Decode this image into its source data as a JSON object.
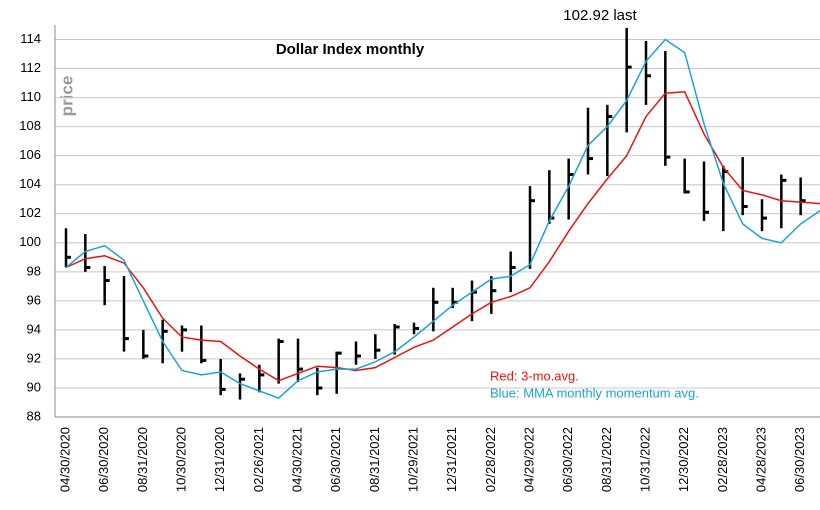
{
  "chart_data": {
    "type": "ohlc",
    "title": "Dollar Index monthly",
    "y_label": "price",
    "annotations": [
      "102.92 last"
    ],
    "categories": [
      "04/30/2020",
      null,
      "06/30/2020",
      null,
      "08/31/2020",
      null,
      "10/30/2020",
      null,
      "12/31/2020",
      null,
      "02/26/2021",
      null,
      "04/30/2021",
      null,
      "06/30/2021",
      null,
      "08/31/2021",
      null,
      "10/29/2021",
      null,
      "12/31/2021",
      null,
      "02/28/2022",
      null,
      "04/29/2022",
      null,
      "06/30/2022",
      null,
      "08/31/2022",
      null,
      "10/31/2022",
      null,
      "12/30/2022",
      null,
      "02/28/2023",
      null,
      "04/28/2023",
      null,
      "06/30/2023",
      null
    ],
    "bar_color": "#000000",
    "high": [
      101,
      100.6,
      98.4,
      97.7,
      94.0,
      94.7,
      94.3,
      94.3,
      92.0,
      91.0,
      91.6,
      93.4,
      93.4,
      91.4,
      92.5,
      93.2,
      93.7,
      94.4,
      94.5,
      96.9,
      96.9,
      97.4,
      97.7,
      99.4,
      103.9,
      105.0,
      105.8,
      109.3,
      109.5,
      114.8,
      113.9,
      113.2,
      105.8,
      105.6,
      105.3,
      105.9,
      103.0,
      104.7,
      104.5,
      null
    ],
    "low": [
      98.3,
      98.0,
      95.7,
      92.5,
      92.0,
      91.7,
      92.5,
      91.7,
      89.5,
      89.2,
      89.7,
      90.3,
      90.4,
      89.5,
      89.6,
      91.6,
      92.0,
      92.3,
      93.7,
      93.9,
      95.5,
      94.6,
      95.1,
      96.6,
      98.2,
      101.3,
      101.6,
      104.7,
      104.6,
      107.6,
      109.5,
      105.3,
      103.4,
      101.5,
      100.8,
      101.9,
      100.8,
      101.0,
      101.9,
      null
    ],
    "close": [
      99.0,
      98.3,
      97.4,
      93.4,
      92.2,
      93.9,
      94.0,
      91.9,
      89.9,
      90.6,
      90.9,
      93.2,
      91.3,
      90.0,
      92.4,
      92.2,
      92.6,
      94.2,
      94.1,
      95.9,
      95.9,
      96.6,
      96.7,
      98.3,
      102.9,
      101.7,
      104.7,
      105.8,
      108.7,
      112.1,
      111.5,
      105.9,
      103.5,
      102.1,
      104.9,
      102.5,
      101.7,
      104.3,
      102.9,
      null
    ],
    "series": [
      {
        "name": "Red: 3-mo.avg.",
        "color": "#e8140c",
        "values": [
          98.3,
          98.9,
          99.1,
          98.6,
          96.9,
          94.8,
          93.5,
          93.3,
          93.2,
          92.2,
          91.3,
          90.5,
          91.0,
          91.5,
          91.4,
          91.2,
          91.4,
          92.1,
          92.8,
          93.3,
          94.2,
          95.1,
          95.9,
          96.3,
          96.9,
          98.7,
          100.8,
          102.7,
          104.4,
          106.0,
          108.7,
          110.3,
          110.4,
          107.5,
          105.2,
          103.6,
          103.3,
          102.9,
          102.8,
          102.7
        ]
      },
      {
        "name": "Blue: MMA monthly momentum avg.",
        "color": "#1aa3d9",
        "values": [
          98.3,
          99.4,
          99.8,
          98.8,
          96.0,
          93.2,
          91.2,
          90.9,
          91.1,
          90.3,
          89.8,
          89.3,
          90.5,
          91.1,
          91.3,
          91.3,
          91.8,
          92.5,
          93.5,
          94.6,
          95.7,
          96.6,
          97.5,
          97.7,
          98.5,
          101.5,
          103.9,
          106.7,
          108.0,
          109.8,
          112.5,
          114.0,
          113.1,
          108.2,
          104.1,
          101.3,
          100.3,
          100.0,
          101.3,
          102.2
        ]
      }
    ],
    "ylim": [
      88,
      115
    ],
    "yticks": [
      88,
      90,
      92,
      94,
      96,
      98,
      100,
      102,
      104,
      106,
      108,
      110,
      112,
      114
    ],
    "grid": true
  }
}
